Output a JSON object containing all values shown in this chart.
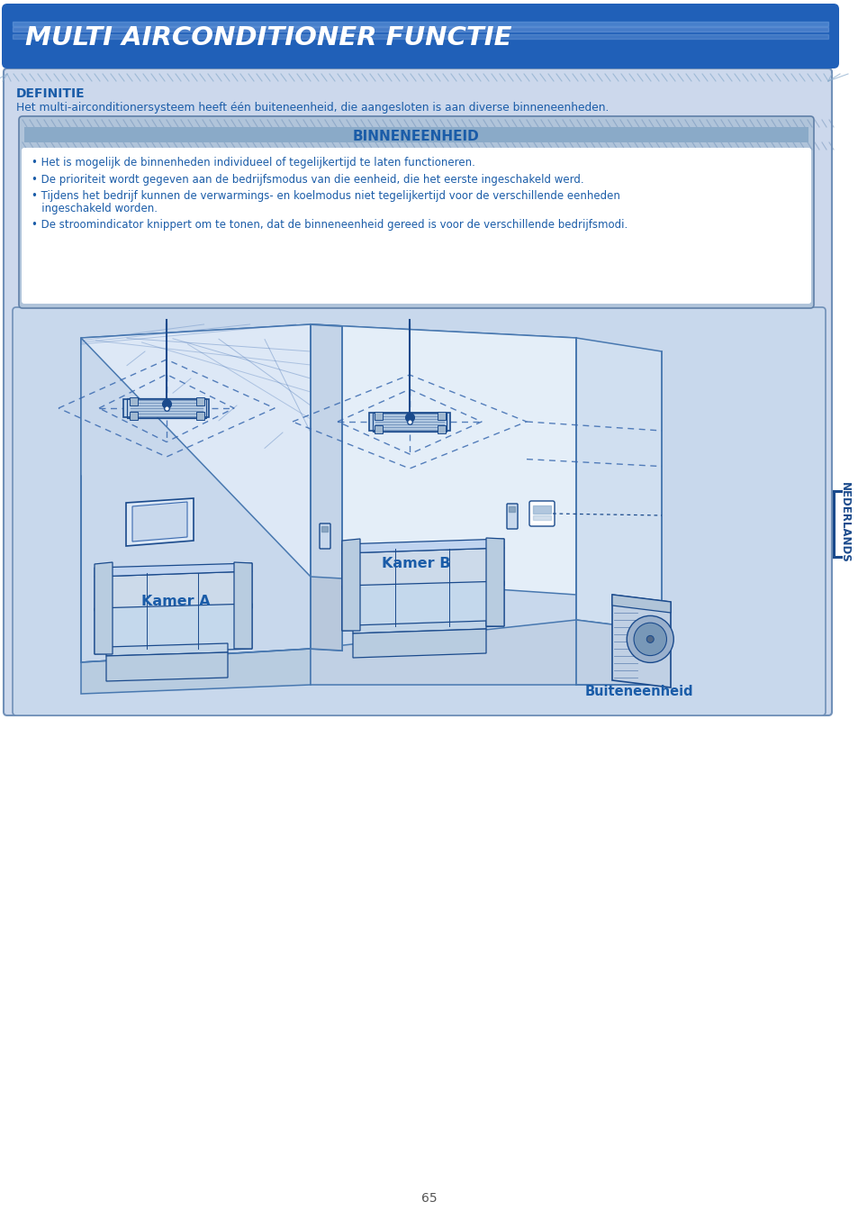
{
  "title": "MULTI AIRCONDITIONER FUNCTIE",
  "page_bg": "#ffffff",
  "content_bg": "#ccd8ec",
  "definitie_label": "DEFINITIE",
  "definitie_text": "Het multi-airconditionersysteem heeft één buiteneenheid, die aangesloten is aan diverse binneneenheden.",
  "binneneenheid_title": "BINNENEENHEID",
  "bullet_points": [
    "• Het is mogelijk de binnenheden individueel of tegelijkertijd te laten functioneren.",
    "• De prioriteit wordt gegeven aan de bedrijfsmodus van die eenheid, die het eerste ingeschakeld werd.",
    "• Tijdens het bedrijf kunnen de verwarmings- en koelmodus niet tegelijkertijd voor de verschillende eenheden\n   ingeschakeld worden.",
    "• De stroomindicator knippert om te tonen, dat de binneneenheid gereed is voor de verschillende bedrijfsmodi."
  ],
  "kamer_a_label": "Kamer A",
  "kamer_b_label": "Kamer B",
  "buiten_label": "Buiteneenheid",
  "nederlands_label": "NEDERLANDS",
  "page_number": "65",
  "blue_dark": "#1a4a8c",
  "blue_med": "#3a6ab0",
  "blue_text": "#1a5ca8",
  "blue_title": "#2060b8",
  "diagram_bg": "#c8d8ec",
  "wall_light": "#dce8f6",
  "wall_mid": "#c8d8ee",
  "wall_dark": "#b8cce0"
}
